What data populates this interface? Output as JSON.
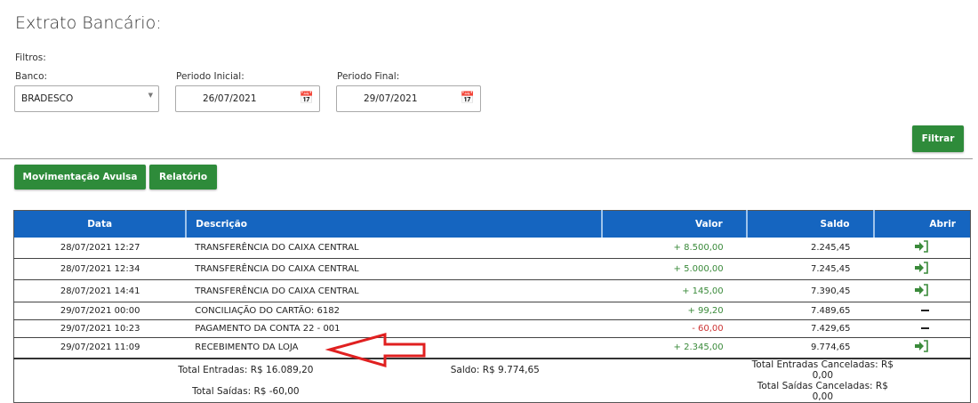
{
  "title": "Extrato Bancário:",
  "filters": {
    "heading": "Filtros:",
    "bank_label": "Banco:",
    "bank_value": "BRADESCO",
    "start_label": "Periodo Inicial:",
    "start_value": "26/07/2021",
    "end_label": "Periodo Final:",
    "end_value": "29/07/2021",
    "filter_button": "Filtrar"
  },
  "actions": {
    "avulsa": "Movimentação Avulsa",
    "report": "Relatório"
  },
  "table": {
    "headers": [
      "Data",
      "Descrição",
      "Valor",
      "Saldo",
      "Abrir"
    ],
    "rows": [
      {
        "date": "28/07/2021 12:27",
        "desc": "TRANSFERÊNCIA DO CAIXA CENTRAL",
        "value": "+ 8.500,00",
        "balance": "2.245,45",
        "open": "enter-icon",
        "type": "pos"
      },
      {
        "date": "28/07/2021 12:34",
        "desc": "TRANSFERÊNCIA DO CAIXA CENTRAL",
        "value": "+ 5.000,00",
        "balance": "7.245,45",
        "open": "enter-icon",
        "type": "pos"
      },
      {
        "date": "28/07/2021 14:41",
        "desc": "TRANSFERÊNCIA DO CAIXA CENTRAL",
        "value": "+ 145,00",
        "balance": "7.390,45",
        "open": "enter-icon",
        "type": "pos"
      },
      {
        "date": "29/07/2021 00:00",
        "desc": "CONCILIAÇÃO DO CARTÃO: 6182",
        "value": "+ 99,20",
        "balance": "7.489,65",
        "open": "dash",
        "type": "pos"
      },
      {
        "date": "29/07/2021 10:23",
        "desc": "PAGAMENTO DA CONTA 22 - 001",
        "value": "- 60,00",
        "balance": "7.429,65",
        "open": "dash",
        "type": "neg"
      },
      {
        "date": "29/07/2021 11:09",
        "desc": "RECEBIMENTO DA LOJA",
        "value": "+ 2.345,00",
        "balance": "9.774,65",
        "open": "enter-icon",
        "type": "pos"
      }
    ],
    "footer": {
      "total_in": "Total Entradas: R$ 16.089,20",
      "total_out": "Total Saídas: R$ -60,00",
      "balance": "Saldo: R$ 9.774,65",
      "cancel_in": "Total Entradas Canceladas: R$ 0,00",
      "cancel_out": "Total Saídas Canceladas: R$ 0,00"
    }
  },
  "colors": {
    "header": "#1565c0",
    "button": "#2e8b3a",
    "positive": "#3a8a3a",
    "negative": "#cc3333",
    "annotation_arrow": "#e02020"
  }
}
